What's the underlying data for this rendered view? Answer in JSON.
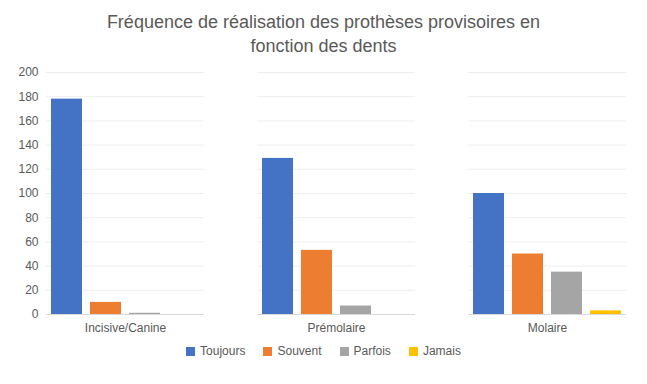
{
  "chart_data": {
    "type": "bar",
    "title": "Fréquence de réalisation des prothèses provisoires en fonction des dents",
    "categories": [
      "Incisive/Canine",
      "Prémolaire",
      "Molaire"
    ],
    "series": [
      {
        "name": "Toujours",
        "color": "#4472c4",
        "values": [
          178,
          129,
          100
        ]
      },
      {
        "name": "Souvent",
        "color": "#ed7d31",
        "values": [
          10,
          53,
          50
        ]
      },
      {
        "name": "Parfois",
        "color": "#a5a5a5",
        "values": [
          1,
          7,
          35
        ]
      },
      {
        "name": "Jamais",
        "color": "#ffc000",
        "values": [
          0,
          0,
          3
        ]
      }
    ],
    "ylim": [
      0,
      200
    ],
    "yticks": [
      0,
      20,
      40,
      60,
      80,
      100,
      120,
      140,
      160,
      180,
      200
    ],
    "grid": true,
    "legend": "bottom"
  }
}
